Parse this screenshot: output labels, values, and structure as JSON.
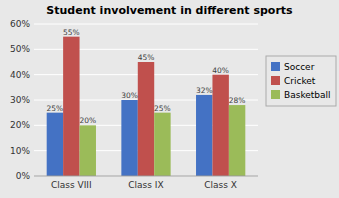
{
  "chart_data": {
    "type": "bar",
    "title": "Student involvement in different sports",
    "categories": [
      "Class VIII",
      "Class IX",
      "Class X"
    ],
    "series": [
      {
        "name": "Soccer",
        "color": "#4472C4",
        "values": [
          25,
          30,
          32
        ],
        "value_labels": [
          "25%",
          "30%",
          "32%"
        ]
      },
      {
        "name": "Cricket",
        "color": "#C0504D",
        "values": [
          55,
          45,
          40
        ],
        "value_labels": [
          "55%",
          "45%",
          "40%"
        ]
      },
      {
        "name": "Basketball",
        "color": "#9BBB59",
        "values": [
          20,
          25,
          28
        ],
        "value_labels": [
          "20%",
          "25%",
          "28%"
        ]
      }
    ],
    "ylim": [
      0,
      60
    ],
    "yticks": [
      {
        "value": 0,
        "label": "0%"
      },
      {
        "value": 10,
        "label": "10%"
      },
      {
        "value": 20,
        "label": "20%"
      },
      {
        "value": 30,
        "label": "30%"
      },
      {
        "value": 40,
        "label": "40%"
      },
      {
        "value": 50,
        "label": "50%"
      },
      {
        "value": 60,
        "label": "60%"
      }
    ],
    "grid": true,
    "legend": "right",
    "data_labels": true
  }
}
